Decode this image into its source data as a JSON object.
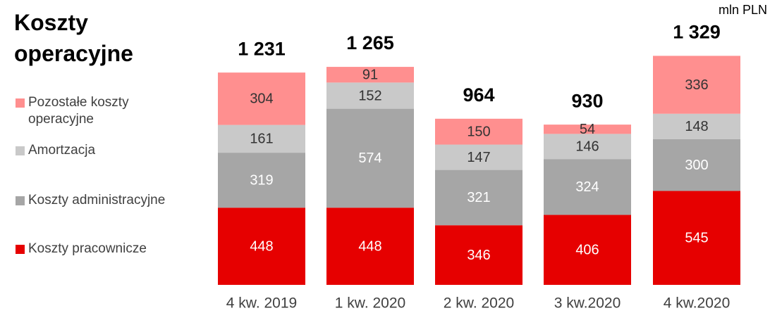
{
  "chart_data": {
    "type": "stacked_bar",
    "title": "Koszty operacyjne",
    "unit": "mln PLN",
    "categories": [
      "4 kw. 2019",
      "1 kw. 2020",
      "2 kw. 2020",
      "3 kw.2020",
      "4 kw.2020"
    ],
    "series": [
      {
        "name": "Koszty pracownicze",
        "color": "#e60000",
        "label_color": "#ffffff",
        "values": [
          448,
          448,
          346,
          406,
          545
        ]
      },
      {
        "name": "Koszty administracyjne",
        "color": "#a6a6a6",
        "label_color": "#ffffff",
        "values": [
          319,
          574,
          321,
          324,
          300
        ]
      },
      {
        "name": "Amortzacja",
        "color": "#c9c9c9",
        "label_color": "#333333",
        "values": [
          161,
          152,
          147,
          146,
          148
        ]
      },
      {
        "name": "Pozostałe koszty operacyjne",
        "color": "#ff8f8f",
        "label_color": "#333333",
        "values": [
          304,
          91,
          150,
          54,
          336
        ]
      }
    ],
    "totals": [
      1231,
      1265,
      964,
      930,
      1329
    ],
    "total_labels": [
      "1 231",
      "1 265",
      "964",
      "930",
      "1 329"
    ]
  }
}
